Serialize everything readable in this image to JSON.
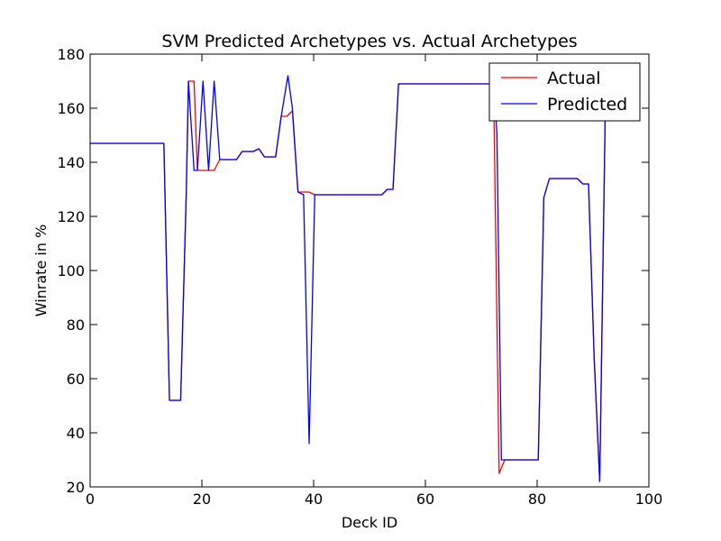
{
  "chart_data": {
    "type": "line",
    "title": "SVM Predicted Archetypes vs. Actual Archetypes",
    "xlabel": "Deck ID",
    "ylabel": "Winrate in %",
    "xlim": [
      0,
      100
    ],
    "ylim": [
      20,
      180
    ],
    "xticks": [
      0,
      20,
      40,
      60,
      80,
      100
    ],
    "yticks": [
      20,
      40,
      60,
      80,
      100,
      120,
      140,
      160,
      180
    ],
    "grid": false,
    "legend_position": "top-right",
    "series": [
      {
        "name": "Actual",
        "color": "#ff0000",
        "points": [
          [
            0,
            147
          ],
          [
            13.2,
            147
          ],
          [
            14.2,
            52
          ],
          [
            16.2,
            52
          ],
          [
            17.2,
            128
          ],
          [
            17.6,
            170
          ],
          [
            18.6,
            170
          ],
          [
            19.2,
            137
          ],
          [
            20.2,
            137
          ],
          [
            22.2,
            137
          ],
          [
            23.2,
            141
          ],
          [
            26.2,
            141
          ],
          [
            27.2,
            144
          ],
          [
            29.2,
            144
          ],
          [
            30.2,
            145
          ],
          [
            31.2,
            142
          ],
          [
            33.2,
            142
          ],
          [
            34.2,
            157
          ],
          [
            35.2,
            157
          ],
          [
            36.2,
            159
          ],
          [
            37.2,
            129
          ],
          [
            38.2,
            129
          ],
          [
            39.2,
            129
          ],
          [
            40.2,
            128
          ],
          [
            52.2,
            128
          ],
          [
            53.2,
            130
          ],
          [
            54.2,
            130
          ],
          [
            55.2,
            169
          ],
          [
            72.2,
            169
          ],
          [
            73.2,
            25
          ],
          [
            74.2,
            30
          ],
          [
            80.2,
            30
          ],
          [
            81.2,
            127
          ],
          [
            82.2,
            134
          ],
          [
            87.2,
            134
          ],
          [
            88.2,
            132
          ],
          [
            89.2,
            132
          ],
          [
            90.2,
            68
          ],
          [
            91.2,
            22
          ],
          [
            92.2,
            160
          ]
        ]
      },
      {
        "name": "Predicted",
        "color": "#0000ff",
        "points": [
          [
            0,
            147
          ],
          [
            13.2,
            147
          ],
          [
            14.2,
            52
          ],
          [
            16.2,
            52
          ],
          [
            17.2,
            128
          ],
          [
            17.6,
            170
          ],
          [
            18.6,
            137
          ],
          [
            19.2,
            137
          ],
          [
            20.2,
            170
          ],
          [
            21.2,
            137
          ],
          [
            22.2,
            170
          ],
          [
            23.2,
            141
          ],
          [
            26.2,
            141
          ],
          [
            27.2,
            144
          ],
          [
            29.2,
            144
          ],
          [
            30.2,
            145
          ],
          [
            31.2,
            142
          ],
          [
            33.2,
            142
          ],
          [
            34.2,
            157
          ],
          [
            35.4,
            172
          ],
          [
            36.2,
            160
          ],
          [
            37.2,
            129
          ],
          [
            38.2,
            128
          ],
          [
            39.2,
            36
          ],
          [
            40.2,
            128
          ],
          [
            52.2,
            128
          ],
          [
            53.2,
            130
          ],
          [
            54.2,
            130
          ],
          [
            55.2,
            169
          ],
          [
            72.2,
            169
          ],
          [
            72.8,
            151
          ],
          [
            73.6,
            30
          ],
          [
            80.2,
            30
          ],
          [
            81.2,
            127
          ],
          [
            82.2,
            134
          ],
          [
            87.2,
            134
          ],
          [
            88.2,
            132
          ],
          [
            89.2,
            132
          ],
          [
            90.2,
            68
          ],
          [
            91.2,
            22
          ],
          [
            92.2,
            160
          ]
        ]
      }
    ]
  }
}
